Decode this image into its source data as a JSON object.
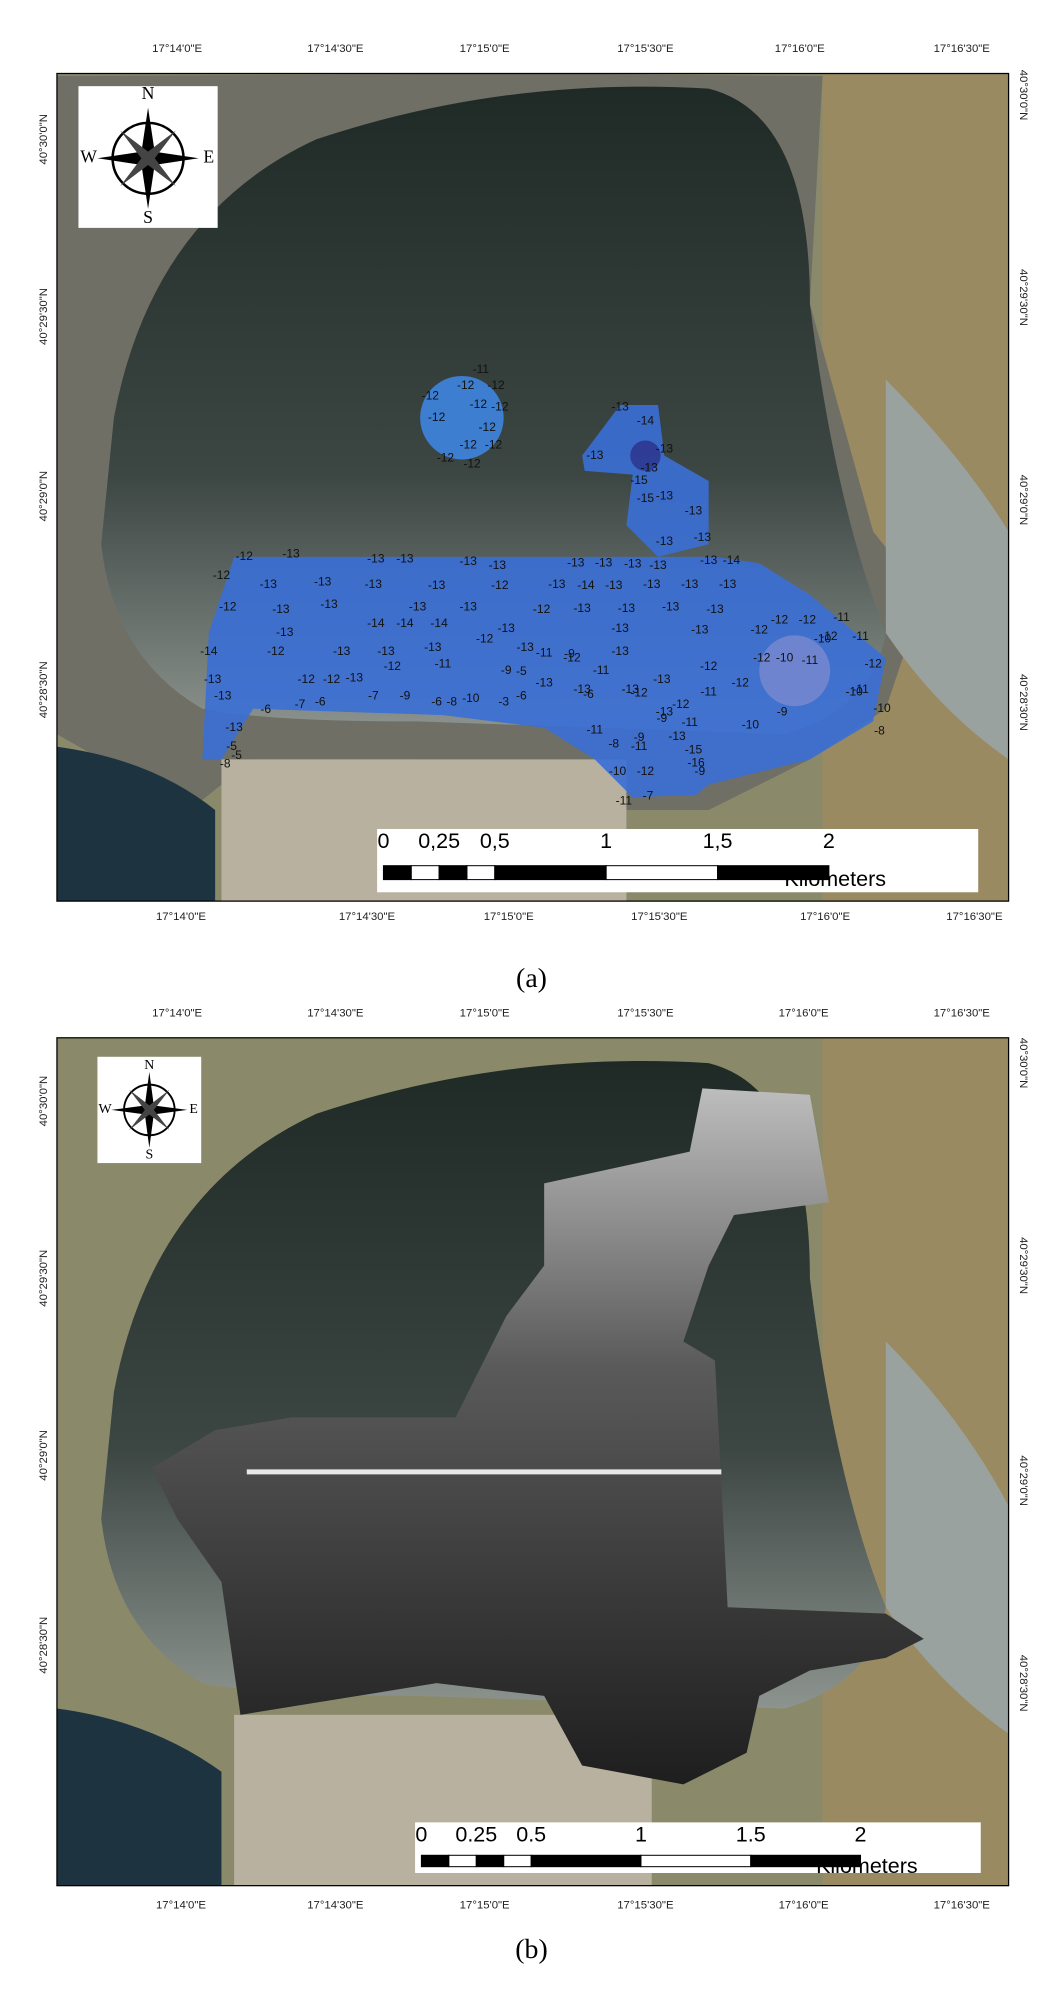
{
  "panels": [
    {
      "caption": "(a)",
      "lon_labels_top": [
        "17°14'0\"E",
        "17°14'30\"E",
        "17°15'0\"E",
        "17°15'30\"E",
        "17°16'0\"E",
        "17°16'30\"E"
      ],
      "lon_labels_bottom": [
        "17°14'0\"E",
        "17°14'30\"E",
        "17°15'0\"E",
        "17°15'30\"E",
        "17°16'0\"E",
        "17°16'30\"E"
      ],
      "lat_labels_left": [
        "40°30'0\"N",
        "40°29'30\"N",
        "40°29'0\"N",
        "40°28'30\"N"
      ],
      "lat_labels_right": [
        "40°30'0\"N",
        "40°29'30\"N",
        "40°29'0\"N",
        "40°28'30\"N"
      ],
      "compass": {
        "n": "N",
        "e": "E",
        "s": "S",
        "w": "W"
      },
      "scale_bar": {
        "ticks": [
          "0",
          "0,25",
          "0,5",
          "1",
          "1,5",
          "2"
        ],
        "unit": "Kilometers"
      },
      "depth_labels": [
        -11,
        -12,
        -12,
        -12,
        -12,
        -12,
        -12,
        -12,
        -12,
        -12,
        -12,
        -12,
        -13,
        -14,
        -13,
        -13,
        -13,
        -15,
        -13,
        -15,
        -13,
        -13,
        -13,
        -14,
        -12,
        -13,
        -13,
        -13,
        -13,
        -13,
        -13,
        -13,
        -13,
        -13,
        -13,
        -12,
        -13,
        -13,
        -13,
        -13,
        -12,
        -13,
        -14,
        -13,
        -13,
        -13,
        -13,
        -12,
        -13,
        -13,
        -13,
        -13,
        -12,
        -13,
        -13,
        -13,
        -13,
        -12,
        -12,
        -11,
        -14,
        -13,
        -14,
        -14,
        -14,
        -13,
        -13,
        -13,
        -12,
        -12,
        -11,
        -12,
        -13,
        -13,
        -13,
        -12,
        -13,
        -11,
        -12,
        -13,
        -12,
        -12,
        -10,
        -11,
        -12,
        -13,
        -12,
        -12,
        -13,
        -12,
        -11,
        -9,
        -5,
        -9,
        -13,
        -11,
        -13,
        -12,
        -12,
        -11,
        -13,
        -6,
        -7,
        -6,
        -7,
        -9,
        -6,
        -8,
        -10,
        -3,
        -6,
        -6,
        -13,
        -13,
        -11,
        -10,
        -10,
        -13,
        -5,
        -5,
        -8,
        -11,
        -11,
        -12,
        -13,
        -13,
        -9,
        -11,
        -8,
        -10,
        -9,
        -10,
        -12,
        -9,
        -11,
        -7,
        -9,
        -15,
        -16,
        -8,
        -10
      ]
    },
    {
      "caption": "(b)",
      "lon_labels_top": [
        "17°14'0\"E",
        "17°14'30\"E",
        "17°15'0\"E",
        "17°15'30\"E",
        "17°16'0\"E",
        "17°16'30\"E"
      ],
      "lon_labels_bottom": [
        "17°14'0\"E",
        "17°14'30\"E",
        "17°15'0\"E",
        "17°15'30\"E",
        "17°16'0\"E",
        "17°16'30\"E"
      ],
      "lat_labels_left": [
        "40°30'0\"N",
        "40°29'30\"N",
        "40°29'0\"N",
        "40°28'30\"N"
      ],
      "lat_labels_right": [
        "40°30'0\"N",
        "40°29'30\"N",
        "40°29'0\"N",
        "40°28'30\"N"
      ],
      "compass": {
        "n": "N",
        "e": "E",
        "s": "S",
        "w": "W"
      },
      "scale_bar": {
        "ticks": [
          "0",
          "0.25",
          "0.5",
          "1",
          "1.5",
          "2"
        ],
        "unit": "Kilometers"
      }
    }
  ]
}
